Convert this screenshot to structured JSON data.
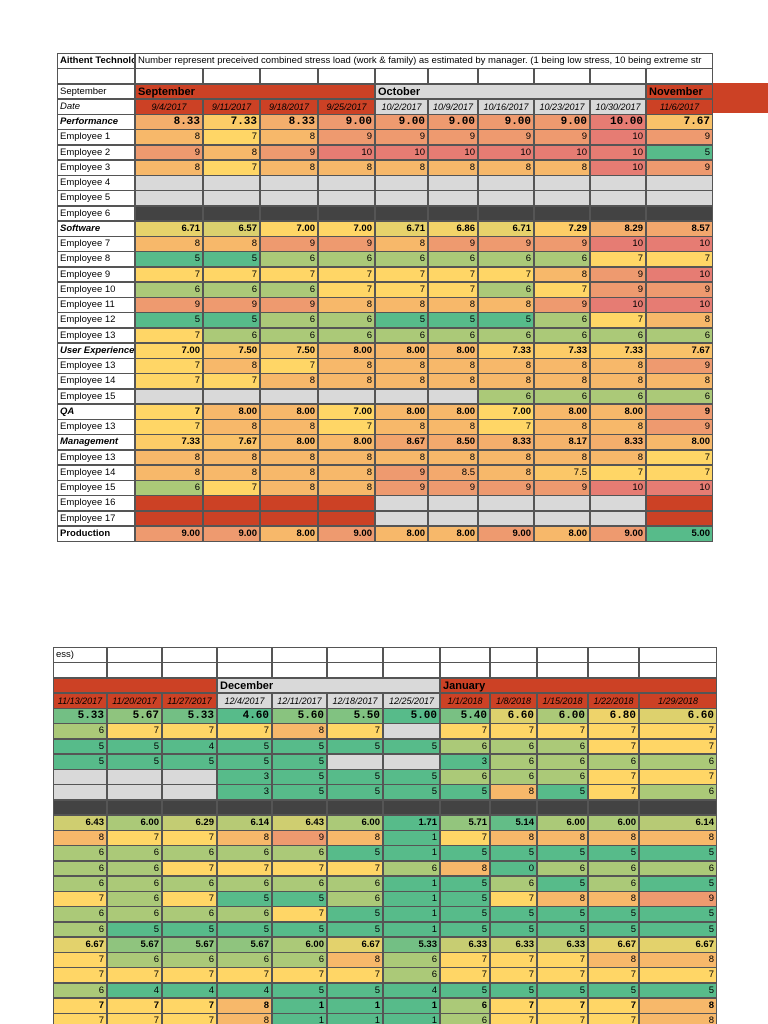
{
  "company": "Aithent Technolo",
  "note": "Number represent preceived combined stress load (work & family) as estimated by manager. (1 being low stress, 10 being extreme str",
  "note_end": "ess)",
  "month_label": "September",
  "date_label": "Date",
  "scale_colors": [
    "#57bb8a",
    "#ffd666",
    "#e67c73"
  ],
  "pages": [
    {
      "periods": [
        {
          "name": "September",
          "color": "#cc4125",
          "dates": [
            "9/4/2017",
            "9/11/2017",
            "9/18/2017",
            "9/25/2017"
          ]
        },
        {
          "name": "October",
          "color": "#d9d9d9",
          "dates": [
            "10/2/2017",
            "10/9/2017",
            "10/16/2017",
            "10/23/2017",
            "10/30/2017"
          ]
        },
        {
          "name": "November",
          "color": "#cc4125",
          "dates": [
            "11/6/2017"
          ]
        }
      ]
    },
    {
      "periods": [
        {
          "color": "#cc4125",
          "dates": [
            "11/13/2017",
            "11/20/2017",
            "11/27/2017"
          ]
        },
        {
          "name": "December",
          "color": "#d9d9d9",
          "dates": [
            "12/4/2017",
            "12/11/2017",
            "12/18/2017",
            "12/25/2017"
          ]
        },
        {
          "name": "January",
          "color": "#cc4125",
          "dates": [
            "1/1/2018",
            "1/8/2018",
            "1/15/2018",
            "1/22/2018",
            "1/29/2018"
          ]
        }
      ]
    }
  ],
  "rows": [
    {
      "label": "Performance",
      "values": [
        8.33,
        7.33,
        8.33,
        9,
        9,
        9,
        9,
        9,
        10,
        7.67,
        5.33,
        5.67,
        5.33,
        4.6,
        5.6,
        5.5,
        5,
        5.4,
        6.6,
        6,
        6.8,
        6.6
      ],
      "value_labels": [
        "8.33",
        "7.33",
        "8.33",
        "9.00",
        "9.00",
        "9.00",
        "9.00",
        "9.00",
        "10.00",
        "7.67",
        "5.33",
        "5.67",
        "5.33",
        "4.60",
        "5.60",
        "5.50",
        "5.00",
        "5.40",
        "6.60",
        "6.00",
        "6.80",
        "6.60"
      ]
    },
    {
      "label": "Employee 1",
      "values": [
        8,
        7,
        8,
        9,
        9,
        9,
        9,
        9,
        10,
        9,
        6,
        7,
        7,
        7,
        8,
        7,
        null,
        7,
        7,
        7,
        7,
        7
      ]
    },
    {
      "label": "Employee 2",
      "values": [
        9,
        8,
        9,
        10,
        10,
        10,
        10,
        10,
        10,
        5,
        5,
        5,
        4,
        5,
        5,
        5,
        5,
        6,
        6,
        6,
        7,
        7
      ]
    },
    {
      "label": "Employee 3",
      "values": [
        8,
        7,
        8,
        8,
        8,
        8,
        8,
        8,
        10,
        9,
        5,
        5,
        5,
        5,
        5,
        null,
        null,
        3,
        6,
        6,
        6,
        6
      ]
    },
    {
      "label": "Employee 4",
      "values": [
        null,
        null,
        null,
        null,
        null,
        null,
        null,
        null,
        null,
        null,
        null,
        null,
        null,
        3,
        5,
        5,
        5,
        6,
        6,
        6,
        7,
        7
      ]
    },
    {
      "label": "Employee 5",
      "values": [
        null,
        null,
        null,
        null,
        null,
        null,
        null,
        null,
        null,
        null,
        null,
        null,
        null,
        3,
        5,
        5,
        5,
        5,
        8,
        5,
        7,
        6
      ]
    },
    {
      "label": "Employee 6",
      "values": [
        null,
        null,
        null,
        null,
        null,
        null,
        null,
        null,
        null,
        null,
        null,
        null,
        null,
        null,
        null,
        null,
        null,
        null,
        null,
        null,
        null,
        null
      ],
      "blank_color": "#434343"
    },
    {
      "label": "Software",
      "values": [
        6.71,
        6.57,
        7,
        7,
        6.71,
        6.86,
        6.71,
        7.29,
        8.29,
        8.57,
        6.43,
        6,
        6.29,
        6.14,
        6.43,
        6,
        1.71,
        5.71,
        5.14,
        6,
        6,
        6.14
      ],
      "value_labels": [
        "6.71",
        "6.57",
        "7.00",
        "7.00",
        "6.71",
        "6.86",
        "6.71",
        "7.29",
        "8.29",
        "8.57",
        "6.43",
        "6.00",
        "6.29",
        "6.14",
        "6.43",
        "6.00",
        "1.71",
        "5.71",
        "5.14",
        "6.00",
        "6.00",
        "6.14"
      ]
    },
    {
      "label": "Employee 7",
      "values": [
        8,
        8,
        9,
        9,
        8,
        9,
        9,
        9,
        10,
        10,
        8,
        7,
        7,
        8,
        9,
        8,
        1,
        7,
        8,
        8,
        8,
        8
      ]
    },
    {
      "label": "Employee 8",
      "values": [
        5,
        5,
        6,
        6,
        6,
        6,
        6,
        6,
        7,
        7,
        6,
        6,
        6,
        6,
        6,
        5,
        1,
        5,
        5,
        5,
        5,
        5
      ]
    },
    {
      "label": "Employee 9",
      "values": [
        7,
        7,
        7,
        7,
        7,
        7,
        7,
        8,
        9,
        10,
        6,
        6,
        7,
        7,
        7,
        7,
        6,
        8,
        0,
        6,
        6,
        6
      ]
    },
    {
      "label": "Employee 10",
      "values": [
        6,
        6,
        6,
        7,
        7,
        7,
        6,
        7,
        9,
        9,
        6,
        6,
        6,
        6,
        6,
        6,
        1,
        5,
        6,
        5,
        6,
        5
      ]
    },
    {
      "label": "Employee 11",
      "values": [
        9,
        9,
        9,
        8,
        8,
        8,
        8,
        9,
        10,
        10,
        7,
        6,
        7,
        5,
        5,
        6,
        1,
        5,
        7,
        8,
        8,
        9
      ]
    },
    {
      "label": "Employee 12",
      "values": [
        5,
        5,
        6,
        6,
        5,
        5,
        5,
        6,
        7,
        8,
        6,
        6,
        6,
        6,
        7,
        5,
        1,
        5,
        5,
        5,
        5,
        5
      ]
    },
    {
      "label": "Employee 13",
      "values": [
        7,
        6,
        6,
        6,
        6,
        6,
        6,
        6,
        6,
        6,
        6,
        5,
        5,
        5,
        5,
        5,
        1,
        5,
        5,
        5,
        5,
        5
      ]
    },
    {
      "label": "User Experience",
      "values": [
        7,
        7.5,
        7.5,
        8,
        8,
        8,
        7.33,
        7.33,
        7.33,
        7.67,
        6.67,
        5.67,
        5.67,
        5.67,
        6,
        6.67,
        5.33,
        6.33,
        6.33,
        6.33,
        6.67,
        6.67
      ],
      "value_labels": [
        "7.00",
        "7.50",
        "7.50",
        "8.00",
        "8.00",
        "8.00",
        "7.33",
        "7.33",
        "7.33",
        "7.67",
        "6.67",
        "5.67",
        "5.67",
        "5.67",
        "6.00",
        "6.67",
        "5.33",
        "6.33",
        "6.33",
        "6.33",
        "6.67",
        "6.67"
      ]
    },
    {
      "label": "Employee 13",
      "values": [
        7,
        8,
        7,
        8,
        8,
        8,
        8,
        8,
        8,
        9,
        7,
        6,
        6,
        6,
        6,
        8,
        6,
        7,
        7,
        7,
        8,
        8
      ]
    },
    {
      "label": "Employee 14",
      "values": [
        7,
        7,
        8,
        8,
        8,
        8,
        8,
        8,
        8,
        8,
        7,
        7,
        7,
        7,
        7,
        7,
        6,
        7,
        7,
        7,
        7,
        7
      ]
    },
    {
      "label": "Employee 15",
      "values": [
        null,
        null,
        null,
        null,
        null,
        null,
        6,
        6,
        6,
        6,
        6,
        4,
        4,
        4,
        5,
        5,
        4,
        5,
        5,
        5,
        5,
        5
      ]
    },
    {
      "label": "QA",
      "values": [
        7,
        8,
        8,
        7,
        8,
        8,
        7,
        8,
        8,
        9,
        7,
        7,
        7,
        8,
        1,
        1,
        1,
        6,
        7,
        7,
        7,
        8
      ],
      "value_labels": [
        "7",
        "8.00",
        "8.00",
        "7.00",
        "8.00",
        "8.00",
        "7.00",
        "8.00",
        "8.00",
        "9",
        "7",
        "7",
        "7",
        "8",
        "1",
        "1",
        "1",
        "6",
        "7",
        "7",
        "7",
        "8"
      ]
    },
    {
      "label": "Employee 13",
      "values": [
        7,
        8,
        8,
        7,
        8,
        8,
        7,
        8,
        8,
        9,
        7,
        7,
        7,
        8,
        1,
        1,
        1,
        6,
        7,
        7,
        7,
        8
      ]
    },
    {
      "label": "Management",
      "values": [
        7.33,
        7.67,
        8,
        8,
        8.67,
        8.5,
        8.33,
        8.17,
        8.33,
        8
      ],
      "value_labels": [
        "7.33",
        "7.67",
        "8.00",
        "8.00",
        "8.67",
        "8.50",
        "8.33",
        "8.17",
        "8.33",
        "8.00"
      ]
    },
    {
      "label": "Employee 13",
      "values": [
        8,
        8,
        8,
        8,
        8,
        8,
        8,
        8,
        8,
        7
      ]
    },
    {
      "label": "Employee 14",
      "values": [
        8,
        8,
        8,
        8,
        9,
        8.5,
        8,
        7.5,
        7,
        7
      ]
    },
    {
      "label": "Employee 15",
      "values": [
        6,
        7,
        8,
        8,
        9,
        9,
        9,
        9,
        10,
        10
      ]
    },
    {
      "label": "Employee 16",
      "values": [
        null,
        null,
        null,
        null,
        null,
        null,
        null,
        null,
        null,
        null
      ],
      "blank_color": [
        "#cc4125",
        "#cc4125",
        "#cc4125",
        "#cc4125",
        "#d9d9d9",
        "#d9d9d9",
        "#d9d9d9",
        "#d9d9d9",
        "#d9d9d9",
        "#cc4125"
      ]
    },
    {
      "label": "Employee 17",
      "values": [
        null,
        null,
        null,
        null,
        null,
        null,
        null,
        null,
        null,
        null
      ],
      "blank_color": [
        "#cc4125",
        "#cc4125",
        "#cc4125",
        "#cc4125",
        "#d9d9d9",
        "#d9d9d9",
        "#d9d9d9",
        "#d9d9d9",
        "#d9d9d9",
        "#cc4125"
      ]
    },
    {
      "label": "Production",
      "values": [
        9,
        9,
        8,
        9,
        8,
        8,
        9,
        8,
        9,
        5
      ],
      "value_labels": [
        "9.00",
        "9.00",
        "8.00",
        "9.00",
        "8.00",
        "8.00",
        "9.00",
        "8.00",
        "9.00",
        "5.00"
      ]
    }
  ]
}
